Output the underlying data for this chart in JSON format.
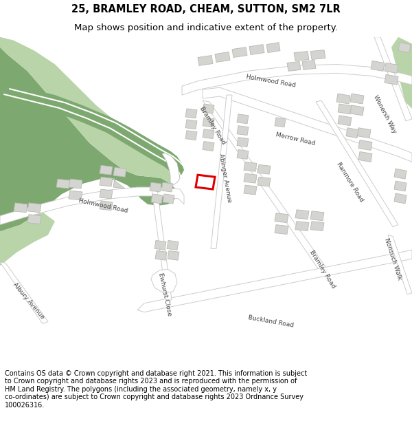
{
  "title_line1": "25, BRAMLEY ROAD, CHEAM, SUTTON, SM2 7LR",
  "title_line2": "Map shows position and indicative extent of the property.",
  "footer_text": "Contains OS data © Crown copyright and database right 2021. This information is subject to Crown copyright and database rights 2023 and is reproduced with the permission of HM Land Registry. The polygons (including the associated geometry, namely x, y co-ordinates) are subject to Crown copyright and database rights 2023 Ordnance Survey 100026316.",
  "map_bg": "#ebebeb",
  "road_color": "#ffffff",
  "road_outline": "#cccccc",
  "building_color": "#d4d4d0",
  "building_outline": "#b8b8b4",
  "green_dark": "#7da870",
  "green_light": "#b8d4a8",
  "highlight_color": "#dd0000",
  "title_fontsize": 10.5,
  "subtitle_fontsize": 9.5,
  "footer_fontsize": 7.0,
  "label_color": "#444444",
  "label_fontsize": 6.5
}
